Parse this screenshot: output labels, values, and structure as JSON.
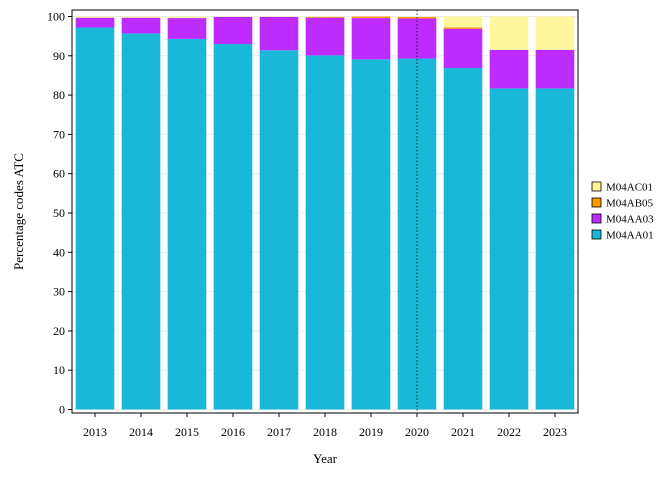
{
  "colors": {
    "M04AA01": "#1ab8d8",
    "M04AA03": "#be2bff",
    "M04AB05": "#ff9900",
    "M04AC01": "#fff59d",
    "background": "#ffffff",
    "grid": "#ebebeb",
    "axis": "#000000"
  },
  "chart_data": {
    "type": "bar",
    "stacked": true,
    "xlabel": "Year",
    "ylabel": "Percentage codes ATC",
    "ylim": [
      0,
      100
    ],
    "yticks": [
      0,
      10,
      20,
      30,
      40,
      50,
      60,
      70,
      80,
      90,
      100
    ],
    "grid": true,
    "legend_position": "right",
    "reference_line": {
      "x": "2020",
      "style": "dotted"
    },
    "categories": [
      "2013",
      "2014",
      "2015",
      "2016",
      "2017",
      "2018",
      "2019",
      "2020",
      "2021",
      "2022",
      "2023"
    ],
    "series": [
      {
        "name": "M04AA01",
        "values": [
          97.2,
          95.7,
          94.3,
          93.0,
          91.4,
          90.1,
          89.1,
          89.3,
          86.9,
          81.7,
          81.7
        ]
      },
      {
        "name": "M04AA03",
        "values": [
          2.5,
          4.0,
          5.3,
          6.9,
          8.5,
          9.6,
          10.5,
          10.2,
          10.0,
          9.8,
          9.8
        ]
      },
      {
        "name": "M04AB05",
        "values": [
          0.0,
          0.0,
          0.0,
          0.0,
          0.0,
          0.2,
          0.4,
          0.4,
          0.3,
          0.0,
          0.0
        ]
      },
      {
        "name": "M04AC01",
        "values": [
          0.3,
          0.3,
          0.4,
          0.1,
          0.1,
          0.1,
          0.0,
          0.1,
          2.8,
          8.5,
          8.5
        ]
      }
    ],
    "legend": [
      "M04AC01",
      "M04AB05",
      "M04AA03",
      "M04AA01"
    ]
  }
}
